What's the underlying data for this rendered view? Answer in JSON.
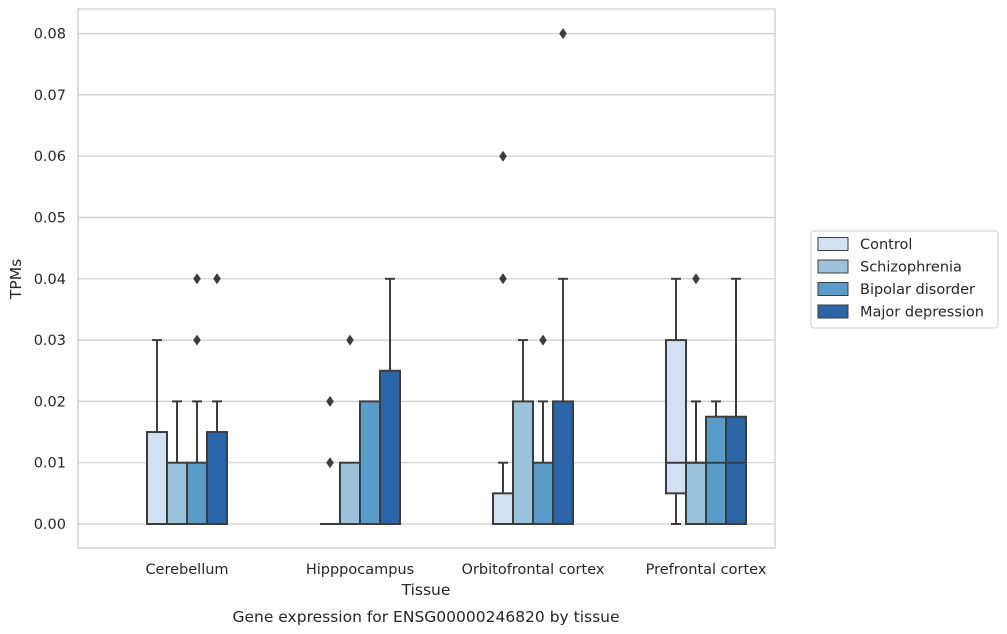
{
  "chart_data": {
    "type": "box",
    "xlabel": "Tissue",
    "ylabel": "TPMs",
    "caption": "Gene expression for ENSG00000246820 by tissue",
    "categories": [
      "Cerebellum",
      "Hipppocampus",
      "Orbitofrontal cortex",
      "Prefrontal cortex"
    ],
    "ylim": [
      -0.004,
      0.084
    ],
    "yticks": [
      0.0,
      0.01,
      0.02,
      0.03,
      0.04,
      0.05,
      0.06,
      0.07,
      0.08
    ],
    "ytick_labels": [
      "0.00",
      "0.01",
      "0.02",
      "0.03",
      "0.04",
      "0.05",
      "0.06",
      "0.07",
      "0.08"
    ],
    "grid": true,
    "legend_placement": "center-right-outside",
    "series": [
      {
        "name": "Control",
        "color": "#d2e2f2",
        "boxes": [
          {
            "min": 0.0,
            "q1": 0.0,
            "median": 0.0,
            "q3": 0.015,
            "max": 0.03,
            "outliers": []
          },
          {
            "min": 0.0,
            "q1": 0.0,
            "median": 0.0,
            "q3": 0.0,
            "max": 0.0,
            "outliers": [
              0.01,
              0.02
            ]
          },
          {
            "min": 0.0,
            "q1": 0.0,
            "median": 0.0,
            "q3": 0.005,
            "max": 0.01,
            "outliers": [
              0.04,
              0.06
            ]
          },
          {
            "min": 0.0,
            "q1": 0.005,
            "median": 0.01,
            "q3": 0.03,
            "max": 0.04,
            "outliers": []
          }
        ]
      },
      {
        "name": "Schizophrenia",
        "color": "#9cc3dd",
        "boxes": [
          {
            "min": 0.0,
            "q1": 0.0,
            "median": 0.0,
            "q3": 0.01,
            "max": 0.02,
            "outliers": []
          },
          {
            "min": 0.0,
            "q1": 0.0,
            "median": 0.0,
            "q3": 0.01,
            "max": 0.01,
            "outliers": [
              0.03
            ]
          },
          {
            "min": 0.0,
            "q1": 0.0,
            "median": 0.0,
            "q3": 0.02,
            "max": 0.03,
            "outliers": []
          },
          {
            "min": 0.0,
            "q1": 0.0,
            "median": 0.01,
            "q3": 0.01,
            "max": 0.02,
            "outliers": [
              0.04
            ]
          }
        ]
      },
      {
        "name": "Bipolar disorder",
        "color": "#5a9cc8",
        "boxes": [
          {
            "min": 0.0,
            "q1": 0.0,
            "median": 0.0,
            "q3": 0.01,
            "max": 0.02,
            "outliers": [
              0.03,
              0.04
            ]
          },
          {
            "min": 0.0,
            "q1": 0.0,
            "median": 0.0,
            "q3": 0.02,
            "max": 0.02,
            "outliers": []
          },
          {
            "min": 0.0,
            "q1": 0.0,
            "median": 0.0,
            "q3": 0.01,
            "max": 0.02,
            "outliers": [
              0.03
            ]
          },
          {
            "min": 0.0,
            "q1": 0.0,
            "median": 0.01,
            "q3": 0.0175,
            "max": 0.02,
            "outliers": []
          }
        ]
      },
      {
        "name": "Major depression",
        "color": "#2965a7",
        "boxes": [
          {
            "min": 0.0,
            "q1": 0.0,
            "median": 0.0,
            "q3": 0.015,
            "max": 0.02,
            "outliers": [
              0.04
            ]
          },
          {
            "min": 0.0,
            "q1": 0.0,
            "median": 0.0,
            "q3": 0.025,
            "max": 0.04,
            "outliers": []
          },
          {
            "min": 0.0,
            "q1": 0.0,
            "median": 0.0,
            "q3": 0.02,
            "max": 0.04,
            "outliers": [
              0.08
            ]
          },
          {
            "min": 0.0,
            "q1": 0.0,
            "median": 0.01,
            "q3": 0.0175,
            "max": 0.04,
            "outliers": []
          }
        ]
      }
    ]
  }
}
